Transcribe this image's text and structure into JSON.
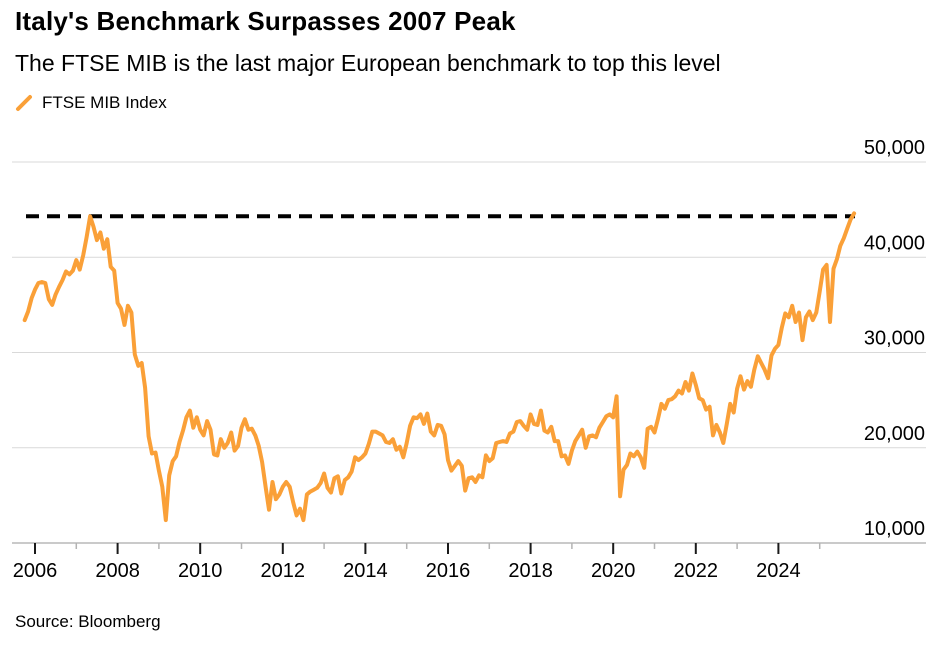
{
  "header": {
    "title": "Italy's Benchmark Surpasses 2007 Peak",
    "subtitle": "The FTSE MIB is the last major European benchmark to top this level"
  },
  "legend": {
    "label": "FTSE MIB Index"
  },
  "footer": {
    "source": "Source: Bloomberg"
  },
  "colors": {
    "line": "#FAA038",
    "grid": "#D9D9D9",
    "axis": "#ABABAB",
    "tick_major": "#1A1A1A",
    "tick_minor": "#B3B3B3",
    "reference": "#000000",
    "text": "#000000"
  },
  "chart_data": {
    "type": "line",
    "title": "Italy's Benchmark Surpasses 2007 Peak",
    "subtitle": "The FTSE MIB is the last major European benchmark to top this level",
    "legend_entries": [
      "FTSE MIB Index"
    ],
    "legend_position": "top-left",
    "grid": true,
    "y_ticks": [
      10000,
      20000,
      30000,
      40000,
      50000
    ],
    "y_range": [
      10000,
      50000
    ],
    "x_ticks_major": [
      2006,
      2008,
      2010,
      2012,
      2014,
      2016,
      2018,
      2020,
      2022,
      2024
    ],
    "x_ticks_minor": [
      2007,
      2009,
      2011,
      2013,
      2015,
      2017,
      2019,
      2021,
      2023,
      2025
    ],
    "reference_line": {
      "value": 44300,
      "style": "dashed",
      "color": "#000000"
    },
    "series": [
      {
        "name": "FTSE MIB Index",
        "color": "#FAA038",
        "frequency": "monthly",
        "start_year": 2005,
        "start_month": 10,
        "values": [
          33400,
          34300,
          35700,
          36600,
          37300,
          37400,
          37300,
          35600,
          35000,
          36100,
          36900,
          37600,
          38500,
          38200,
          38600,
          39700,
          38700,
          40200,
          42100,
          44300,
          43200,
          41800,
          42600,
          40900,
          41900,
          39000,
          38600,
          35200,
          34600,
          32900,
          34900,
          34200,
          29800,
          28600,
          28900,
          26300,
          21200,
          19400,
          19500,
          17600,
          15900,
          12400,
          17100,
          18600,
          19100,
          20600,
          21800,
          23200,
          23900,
          22100,
          23200,
          21900,
          21300,
          22800,
          21900,
          19300,
          19200,
          20900,
          20000,
          20500,
          21600,
          19700,
          20200,
          22100,
          23000,
          21900,
          22000,
          21300,
          20200,
          18500,
          15900,
          13500,
          16400,
          14600,
          15100,
          15900,
          16400,
          15900,
          14300,
          12900,
          13600,
          12400,
          15100,
          15400,
          15600,
          15800,
          16300,
          17300,
          15800,
          15300,
          16800,
          17000,
          15200,
          16600,
          16900,
          17500,
          19000,
          18700,
          19000,
          19400,
          20400,
          21700,
          21700,
          21500,
          21300,
          20600,
          20500,
          20900,
          19800,
          20100,
          19000,
          20500,
          22300,
          23200,
          23100,
          23500,
          22500,
          23600,
          21700,
          21300,
          22400,
          22300,
          21400,
          18700,
          17600,
          18100,
          18600,
          18100,
          15500,
          16800,
          16900,
          16400,
          17100,
          16900,
          19200,
          18600,
          18900,
          20500,
          20600,
          20700,
          20600,
          21500,
          21700,
          22700,
          22800,
          22300,
          21900,
          23500,
          22500,
          22400,
          23900,
          21800,
          21600,
          22200,
          20700,
          20700,
          19100,
          19200,
          18300,
          19700,
          20700,
          21300,
          21900,
          20000,
          21200,
          21300,
          21100,
          22100,
          22700,
          23300,
          23500,
          23200,
          25400,
          14900,
          17700,
          18200,
          19400,
          19100,
          19600,
          19000,
          17900,
          22000,
          22200,
          21600,
          23000,
          24600,
          24100,
          25000,
          25100,
          25400,
          26000,
          25700,
          26900,
          26000,
          27800,
          26600,
          25200,
          25000,
          24000,
          24300,
          21300,
          22400,
          21600,
          20500,
          22500,
          24600,
          23700,
          26200,
          27500,
          26100,
          27000,
          26400,
          28200,
          29600,
          28900,
          28200,
          27300,
          29700,
          30400,
          30800,
          32600,
          34100,
          33700,
          34900,
          33200,
          34200,
          31300,
          33700,
          34300,
          33400,
          34200,
          36400,
          38700,
          39200,
          33200,
          38800,
          39800,
          41200,
          42000,
          43000,
          44000,
          44600
        ]
      }
    ]
  }
}
